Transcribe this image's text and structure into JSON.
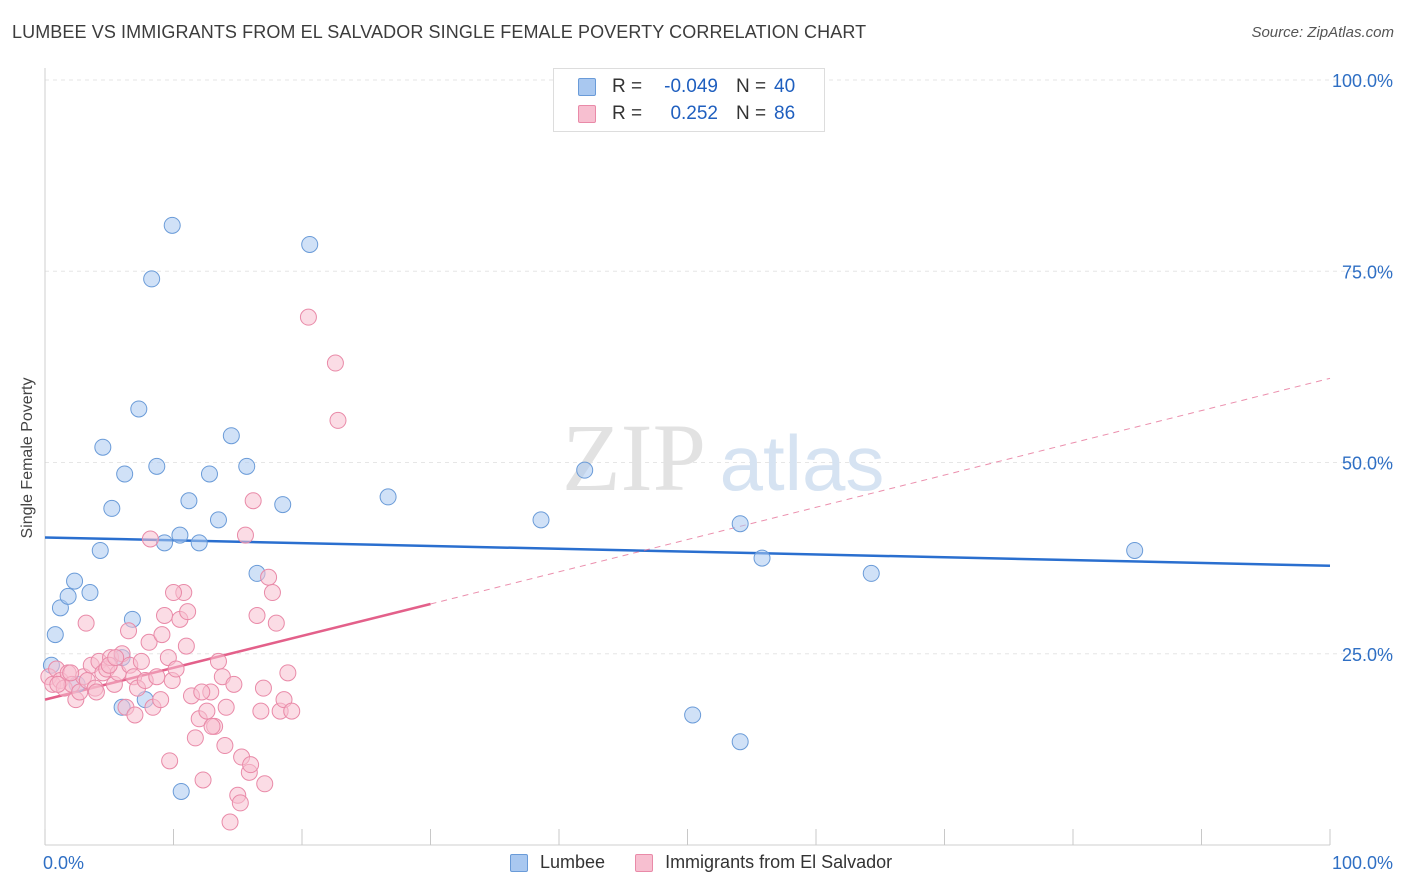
{
  "header": {
    "title": "LUMBEE VS IMMIGRANTS FROM EL SALVADOR SINGLE FEMALE POVERTY CORRELATION CHART",
    "source": "Source: ZipAtlas.com"
  },
  "watermark": {
    "zip": "ZIP",
    "atlas": "atlas"
  },
  "legend": {
    "r_label": "R =",
    "n_label": "N =",
    "rows": [
      {
        "r": "-0.049",
        "n": "40",
        "color": "#a9c8f0",
        "border": "#6a9bd8"
      },
      {
        "r": "0.252",
        "n": "86",
        "color": "#f7bfd0",
        "border": "#e98aa8"
      }
    ]
  },
  "chart_data": {
    "type": "scatter",
    "title": "LUMBEE VS IMMIGRANTS FROM EL SALVADOR SINGLE FEMALE POVERTY CORRELATION CHART",
    "xlabel": "",
    "ylabel": "Single Female Poverty",
    "xlim": [
      0,
      100
    ],
    "ylim": [
      0,
      100
    ],
    "x_tick_labels": [
      "0.0%",
      "100.0%"
    ],
    "y_ticks": [
      25,
      50,
      75,
      100
    ],
    "y_tick_labels": [
      "25.0%",
      "50.0%",
      "75.0%",
      "100.0%"
    ],
    "grid": true,
    "series": [
      {
        "name": "Lumbee",
        "color": "#a9c8f0",
        "stroke": "#6a9bd8",
        "line_color": "#2a6fcf",
        "R": -0.049,
        "N": 40,
        "trend": {
          "x": [
            0,
            100
          ],
          "y": [
            40.2,
            36.5
          ],
          "dashed_after": null
        },
        "points": [
          [
            0.5,
            23.5
          ],
          [
            0.8,
            27.5
          ],
          [
            1.2,
            31.0
          ],
          [
            1.8,
            32.5
          ],
          [
            2.3,
            34.5
          ],
          [
            3.5,
            33.0
          ],
          [
            4.3,
            38.5
          ],
          [
            4.5,
            52.0
          ],
          [
            5.2,
            44.0
          ],
          [
            6.0,
            24.5
          ],
          [
            6.2,
            48.5
          ],
          [
            6.8,
            29.5
          ],
          [
            7.3,
            57.0
          ],
          [
            8.3,
            74.0
          ],
          [
            8.7,
            49.5
          ],
          [
            9.3,
            39.5
          ],
          [
            9.9,
            81.0
          ],
          [
            10.5,
            40.5
          ],
          [
            11.2,
            45.0
          ],
          [
            12.0,
            39.5
          ],
          [
            12.8,
            48.5
          ],
          [
            13.5,
            42.5
          ],
          [
            14.5,
            53.5
          ],
          [
            15.7,
            49.5
          ],
          [
            16.5,
            35.5
          ],
          [
            18.5,
            44.5
          ],
          [
            20.6,
            78.5
          ],
          [
            26.7,
            45.5
          ],
          [
            38.6,
            42.5
          ],
          [
            42.0,
            49.0
          ],
          [
            50.4,
            17.0
          ],
          [
            54.1,
            42.0
          ],
          [
            55.8,
            37.5
          ],
          [
            64.3,
            35.5
          ],
          [
            84.8,
            38.5
          ],
          [
            54.1,
            13.5
          ],
          [
            10.6,
            7.0
          ],
          [
            7.8,
            19.0
          ],
          [
            6.0,
            18.0
          ],
          [
            2.5,
            21.0
          ]
        ]
      },
      {
        "name": "Immigrants from El Salvador",
        "color": "#f7bfd0",
        "stroke": "#e98aa8",
        "line_color": "#e3608a",
        "R": 0.252,
        "N": 86,
        "trend": {
          "x": [
            0,
            30
          ],
          "y": [
            19.0,
            31.5
          ],
          "dashed_to": [
            100,
            61.0
          ]
        },
        "points": [
          [
            0.3,
            22.0
          ],
          [
            0.6,
            21.0
          ],
          [
            0.9,
            23.0
          ],
          [
            1.2,
            21.5
          ],
          [
            1.5,
            20.5
          ],
          [
            1.8,
            22.5
          ],
          [
            2.1,
            21.0
          ],
          [
            2.4,
            19.0
          ],
          [
            2.7,
            20.0
          ],
          [
            3.0,
            22.0
          ],
          [
            3.3,
            21.5
          ],
          [
            3.6,
            23.5
          ],
          [
            3.9,
            20.5
          ],
          [
            4.2,
            24.0
          ],
          [
            4.5,
            22.5
          ],
          [
            4.8,
            23.0
          ],
          [
            5.1,
            24.5
          ],
          [
            5.4,
            21.0
          ],
          [
            5.7,
            22.5
          ],
          [
            6.0,
            25.0
          ],
          [
            6.3,
            18.0
          ],
          [
            6.6,
            23.5
          ],
          [
            6.9,
            22.0
          ],
          [
            7.2,
            20.5
          ],
          [
            7.5,
            24.0
          ],
          [
            7.8,
            21.5
          ],
          [
            8.1,
            26.5
          ],
          [
            8.4,
            18.0
          ],
          [
            8.7,
            22.0
          ],
          [
            9.0,
            19.0
          ],
          [
            9.3,
            30.0
          ],
          [
            9.6,
            24.5
          ],
          [
            9.9,
            21.5
          ],
          [
            10.2,
            23.0
          ],
          [
            10.5,
            29.5
          ],
          [
            10.8,
            33.0
          ],
          [
            11.1,
            30.5
          ],
          [
            11.4,
            19.5
          ],
          [
            11.7,
            14.0
          ],
          [
            12.0,
            16.5
          ],
          [
            12.3,
            8.5
          ],
          [
            12.6,
            17.5
          ],
          [
            12.9,
            20.0
          ],
          [
            13.2,
            15.5
          ],
          [
            13.5,
            24.0
          ],
          [
            13.8,
            22.0
          ],
          [
            14.1,
            18.0
          ],
          [
            14.4,
            3.0
          ],
          [
            14.7,
            21.0
          ],
          [
            15.0,
            6.5
          ],
          [
            15.3,
            11.5
          ],
          [
            15.6,
            40.5
          ],
          [
            15.9,
            9.5
          ],
          [
            16.2,
            45.0
          ],
          [
            16.5,
            30.0
          ],
          [
            16.8,
            17.5
          ],
          [
            17.1,
            8.0
          ],
          [
            17.4,
            35.0
          ],
          [
            17.7,
            33.0
          ],
          [
            18.0,
            29.0
          ],
          [
            18.3,
            17.5
          ],
          [
            18.6,
            19.0
          ],
          [
            18.9,
            22.5
          ],
          [
            19.2,
            17.5
          ],
          [
            20.5,
            69.0
          ],
          [
            22.6,
            63.0
          ],
          [
            22.8,
            55.5
          ],
          [
            3.2,
            29.0
          ],
          [
            4.0,
            20.0
          ],
          [
            5.0,
            23.5
          ],
          [
            7.0,
            17.0
          ],
          [
            8.2,
            40.0
          ],
          [
            9.1,
            27.5
          ],
          [
            10.0,
            33.0
          ],
          [
            11.0,
            26.0
          ],
          [
            13.0,
            15.5
          ],
          [
            14.0,
            13.0
          ],
          [
            15.2,
            5.5
          ],
          [
            16.0,
            10.5
          ],
          [
            9.7,
            11.0
          ],
          [
            6.5,
            28.0
          ],
          [
            2.0,
            22.5
          ],
          [
            1.0,
            21.0
          ],
          [
            12.2,
            20.0
          ],
          [
            17.0,
            20.5
          ],
          [
            5.5,
            24.5
          ]
        ]
      }
    ]
  },
  "bottom_legend": [
    {
      "label": "Lumbee",
      "color": "#a9c8f0",
      "border": "#6a9bd8"
    },
    {
      "label": "Immigrants from El Salvador",
      "color": "#f7bfd0",
      "border": "#e98aa8"
    }
  ]
}
